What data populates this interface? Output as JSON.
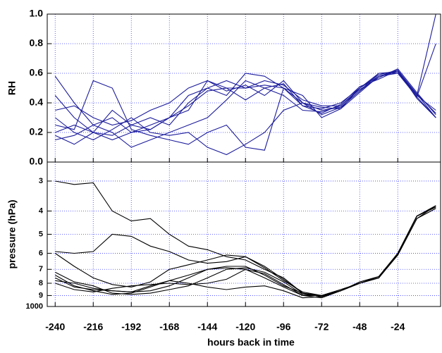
{
  "chart_data": [
    {
      "type": "line",
      "ylabel": "RH",
      "grid": true,
      "xlim": [
        -245,
        3
      ],
      "xticks": [
        -240,
        -216,
        -192,
        -168,
        -144,
        -120,
        -96,
        -72,
        -48,
        -24
      ],
      "ylim": [
        0,
        1
      ],
      "yticks": [
        {
          "value": 0,
          "label": "0.0"
        },
        {
          "value": 0.2,
          "label": "0.2"
        },
        {
          "value": 0.4,
          "label": "0.4"
        },
        {
          "value": 0.6,
          "label": "0.6"
        },
        {
          "value": 0.8,
          "label": "0.8"
        },
        {
          "value": 1,
          "label": "1.0"
        }
      ],
      "x": [
        -240,
        -228,
        -216,
        -204,
        -192,
        -180,
        -168,
        -156,
        -144,
        -132,
        -120,
        -108,
        -96,
        -84,
        -72,
        -60,
        -48,
        -36,
        -24,
        -12,
        0
      ],
      "series": [
        {
          "color": "#1c1c9c",
          "values": [
            0.58,
            0.4,
            0.25,
            0.3,
            0.2,
            0.25,
            0.3,
            0.45,
            0.5,
            0.55,
            0.5,
            0.52,
            0.5,
            0.4,
            0.35,
            0.37,
            0.48,
            0.58,
            0.62,
            0.45,
            1.0
          ]
        },
        {
          "color": "#1c1c9c",
          "values": [
            0.45,
            0.3,
            0.2,
            0.18,
            0.25,
            0.22,
            0.3,
            0.35,
            0.55,
            0.5,
            0.5,
            0.55,
            0.52,
            0.42,
            0.38,
            0.38,
            0.5,
            0.6,
            0.6,
            0.46,
            0.3
          ]
        },
        {
          "color": "#1c1c9c",
          "values": [
            0.2,
            0.25,
            0.2,
            0.35,
            0.25,
            0.3,
            0.25,
            0.4,
            0.5,
            0.45,
            0.6,
            0.58,
            0.5,
            0.38,
            0.36,
            0.4,
            0.5,
            0.58,
            0.61,
            0.44,
            0.8
          ]
        },
        {
          "color": "#1c1c9c",
          "values": [
            0.15,
            0.18,
            0.25,
            0.2,
            0.1,
            0.15,
            0.2,
            0.25,
            0.3,
            0.42,
            0.55,
            0.5,
            0.45,
            0.35,
            0.34,
            0.38,
            0.49,
            0.57,
            0.63,
            0.47,
            0.32
          ]
        },
        {
          "color": "#1c1c9c",
          "values": [
            0.25,
            0.22,
            0.55,
            0.5,
            0.22,
            0.18,
            0.15,
            0.12,
            0.2,
            0.25,
            0.1,
            0.08,
            0.5,
            0.45,
            0.3,
            0.36,
            0.5,
            0.59,
            0.62,
            0.43,
            0.3
          ]
        },
        {
          "color": "#1c1c9c",
          "values": [
            0.3,
            0.2,
            0.15,
            0.22,
            0.3,
            0.2,
            0.18,
            0.2,
            0.1,
            0.05,
            0.12,
            0.2,
            0.35,
            0.4,
            0.32,
            0.37,
            0.48,
            0.6,
            0.61,
            0.45,
            0.35
          ]
        },
        {
          "color": "#1c1c9c",
          "values": [
            0.35,
            0.38,
            0.3,
            0.25,
            0.28,
            0.35,
            0.4,
            0.5,
            0.55,
            0.48,
            0.52,
            0.45,
            0.55,
            0.4,
            0.37,
            0.36,
            0.47,
            0.58,
            0.6,
            0.44,
            0.3
          ]
        },
        {
          "color": "#1c1c9c",
          "values": [
            0.18,
            0.12,
            0.2,
            0.15,
            0.2,
            0.22,
            0.3,
            0.38,
            0.48,
            0.5,
            0.42,
            0.5,
            0.53,
            0.38,
            0.33,
            0.39,
            0.51,
            0.56,
            0.62,
            0.46,
            0.33
          ]
        }
      ]
    },
    {
      "type": "line",
      "ylabel": "pressure (hPa)",
      "xlabel": "hours back in time",
      "grid": true,
      "ylog": true,
      "xlim": [
        -245,
        3
      ],
      "xticks": [
        -240,
        -216,
        -192,
        -168,
        -144,
        -120,
        -96,
        -72,
        -48,
        -24
      ],
      "ylim": [
        1000,
        250
      ],
      "yticks": [
        {
          "value": 300,
          "label": "3"
        },
        {
          "value": 400,
          "label": "4"
        },
        {
          "value": 500,
          "label": "5"
        },
        {
          "value": 600,
          "label": "6"
        },
        {
          "value": 700,
          "label": "7"
        },
        {
          "value": 800,
          "label": "8"
        },
        {
          "value": 900,
          "label": "9"
        },
        1000
      ],
      "x": [
        -240,
        -228,
        -216,
        -204,
        -192,
        -180,
        -168,
        -156,
        -144,
        -132,
        -120,
        -108,
        -96,
        -84,
        -72,
        -60,
        -48,
        -36,
        -24,
        -12,
        0
      ],
      "series": [
        {
          "color": "#000000",
          "values": [
            300,
            310,
            305,
            400,
            440,
            430,
            500,
            560,
            580,
            620,
            640,
            700,
            760,
            880,
            900,
            860,
            790,
            750,
            610,
            430,
            380
          ]
        },
        {
          "color": "#000000",
          "values": [
            590,
            600,
            590,
            500,
            510,
            560,
            590,
            640,
            660,
            650,
            620,
            690,
            780,
            870,
            900,
            850,
            800,
            760,
            600,
            420,
            385
          ]
        },
        {
          "color": "#000000",
          "values": [
            600,
            680,
            760,
            810,
            830,
            790,
            700,
            670,
            640,
            610,
            620,
            680,
            770,
            880,
            910,
            860,
            800,
            760,
            610,
            430,
            390
          ]
        },
        {
          "color": "#000000",
          "values": [
            720,
            790,
            820,
            880,
            890,
            880,
            850,
            820,
            760,
            700,
            690,
            720,
            790,
            890,
            905,
            860,
            800,
            750,
            600,
            420,
            380
          ]
        },
        {
          "color": "#000000",
          "values": [
            740,
            820,
            860,
            890,
            880,
            830,
            780,
            740,
            700,
            690,
            700,
            760,
            830,
            900,
            900,
            850,
            800,
            760,
            600,
            420,
            385
          ]
        },
        {
          "color": "#000000",
          "values": [
            760,
            830,
            850,
            860,
            870,
            860,
            820,
            760,
            700,
            680,
            680,
            740,
            820,
            880,
            910,
            860,
            790,
            750,
            600,
            420,
            380
          ]
        },
        {
          "color": "#000000",
          "values": [
            800,
            850,
            870,
            840,
            820,
            810,
            800,
            810,
            800,
            770,
            700,
            730,
            810,
            900,
            920,
            860,
            800,
            760,
            610,
            430,
            390
          ]
        },
        {
          "color": "#000000",
          "values": [
            780,
            800,
            840,
            860,
            870,
            820,
            780,
            800,
            830,
            850,
            830,
            820,
            860,
            920,
            910,
            860,
            800,
            760,
            600,
            420,
            385
          ]
        }
      ]
    }
  ]
}
